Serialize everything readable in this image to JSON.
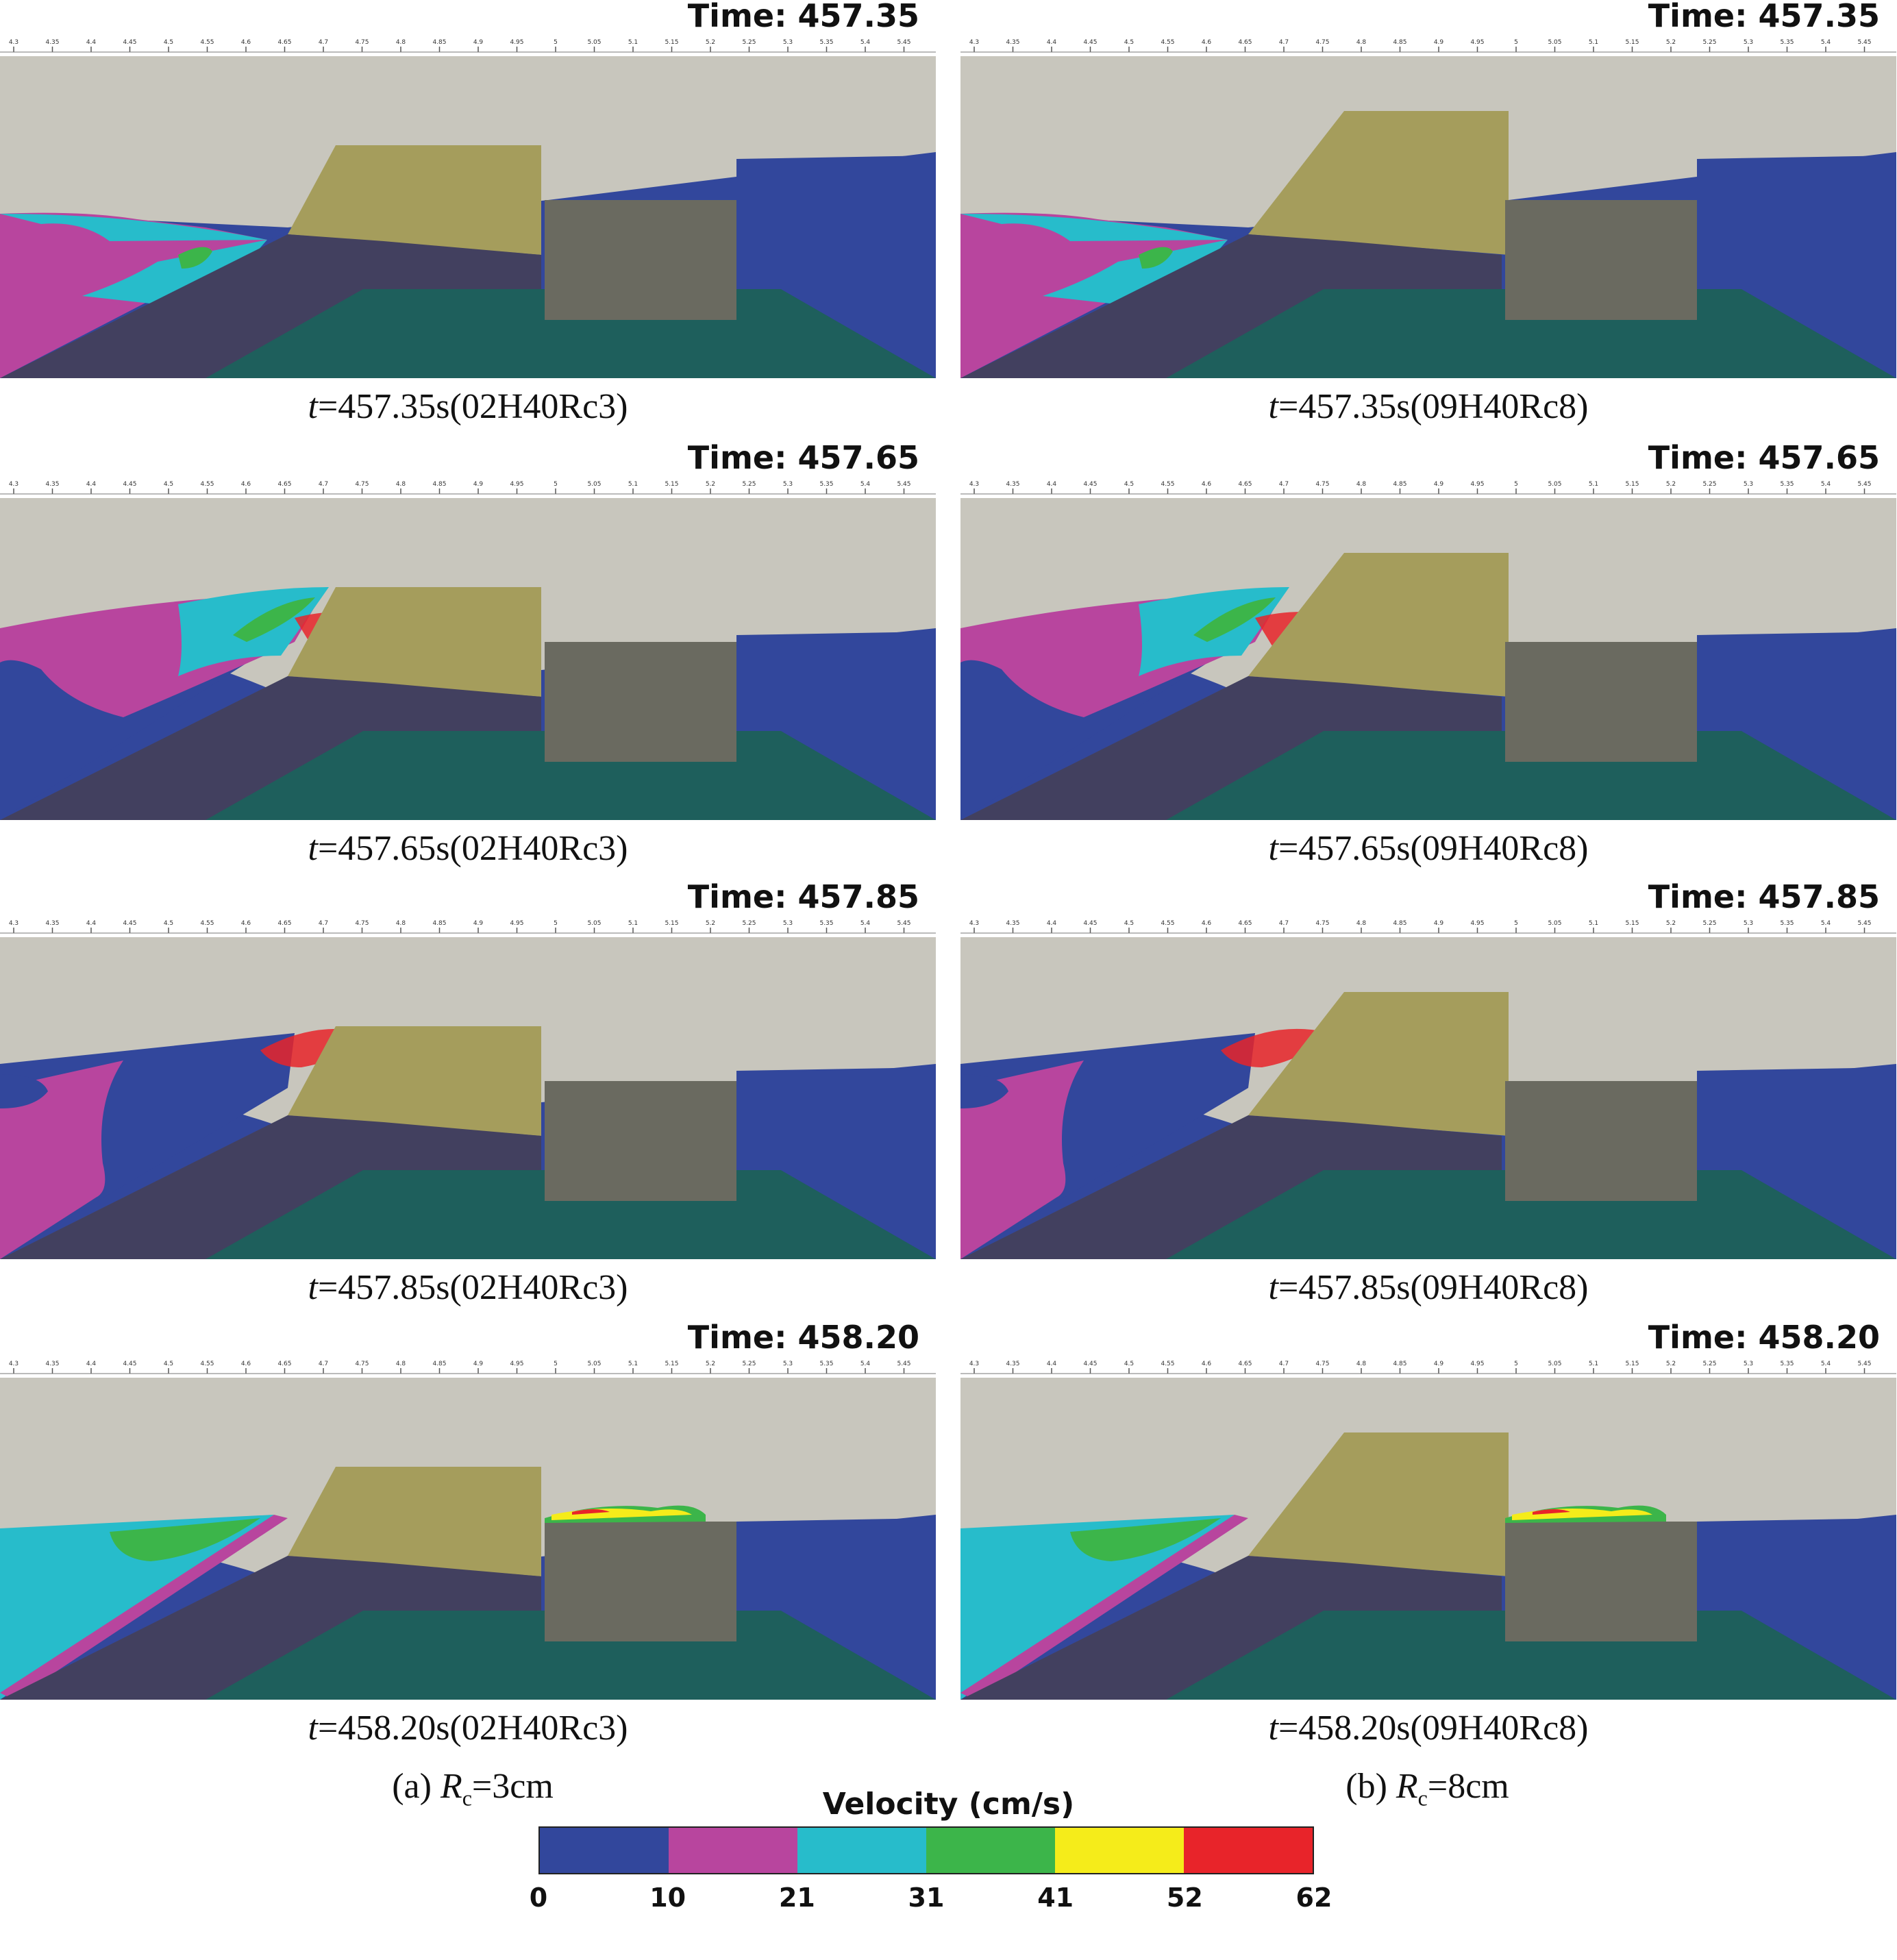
{
  "figure": {
    "panels": [
      {
        "time": "Time: 457.35",
        "caption_t": "t",
        "caption_rest": "=457.35s(02H40Rc3)",
        "variant": "a"
      },
      {
        "time": "Time: 457.35",
        "caption_t": "t",
        "caption_rest": "=457.35s(09H40Rc8)",
        "variant": "b"
      },
      {
        "time": "Time: 457.65",
        "caption_t": "t",
        "caption_rest": "=457.65s(02H40Rc3)",
        "variant": "a"
      },
      {
        "time": "Time: 457.65",
        "caption_t": "t",
        "caption_rest": "=457.65s(09H40Rc8)",
        "variant": "b"
      },
      {
        "time": "Time: 457.85",
        "caption_t": "t",
        "caption_rest": "=457.85s(02H40Rc3)",
        "variant": "a"
      },
      {
        "time": "Time: 457.85",
        "caption_t": "t",
        "caption_rest": "=457.85s(09H40Rc8)",
        "variant": "b"
      },
      {
        "time": "Time: 458.20",
        "caption_t": "t",
        "caption_rest": "=458.20s(02H40Rc3)",
        "variant": "a"
      },
      {
        "time": "Time: 458.20",
        "caption_t": "t",
        "caption_rest": "=458.20s(09H40Rc8)",
        "variant": "b"
      }
    ],
    "axis_ticks": [
      "4.3",
      "4.35",
      "4.4",
      "4.45",
      "4.5",
      "4.55",
      "4.6",
      "4.65",
      "4.7",
      "4.75",
      "4.8",
      "4.85",
      "4.9",
      "4.95",
      "5",
      "5.05",
      "5.1",
      "5.15",
      "5.2",
      "5.25",
      "5.3",
      "5.35",
      "5.4",
      "5.45"
    ],
    "column_captions": {
      "a": {
        "prefix": "(a)  ",
        "symbol": "R",
        "sub": "c",
        "suffix": "=3cm"
      },
      "b": {
        "prefix": "(b)  ",
        "symbol": "R",
        "sub": "c",
        "suffix": "=8cm"
      }
    }
  },
  "legend": {
    "title": "Velocity (cm/s)",
    "ticks": [
      "0",
      "10",
      "21",
      "31",
      "41",
      "52",
      "62"
    ],
    "colors": [
      "#32479c",
      "#b8459e",
      "#27bccb",
      "#3cb54a",
      "#f5ec1a",
      "#e8242a"
    ]
  },
  "palette": {
    "air": "#c8c6bd",
    "structure_crown": "#a59d5c",
    "breakwater_core": "#42405f",
    "seabed": "#1e5f5c",
    "caisson": "#6a6a60"
  }
}
